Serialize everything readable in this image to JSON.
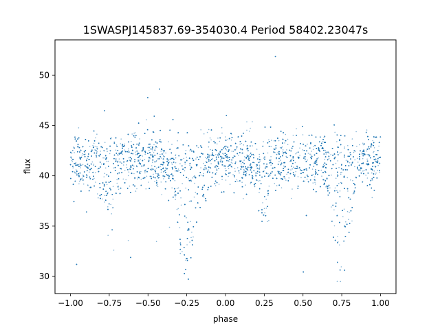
{
  "chart_data": {
    "type": "scatter",
    "title": "1SWASPJ145837.69-354030.4 Period 58402.23047s",
    "xlabel": "phase",
    "ylabel": "flux",
    "xlim": [
      -1.1,
      1.1
    ],
    "ylim": [
      28.3,
      53.5
    ],
    "xticks": [
      -1.0,
      -0.75,
      -0.5,
      -0.25,
      0.0,
      0.25,
      0.5,
      0.75,
      1.0
    ],
    "xtick_labels": [
      "−1.00",
      "−0.75",
      "−0.50",
      "−0.25",
      "0.00",
      "0.25",
      "0.50",
      "0.75",
      "1.00"
    ],
    "yticks": [
      30,
      35,
      40,
      45,
      50
    ],
    "ytick_labels": [
      "30",
      "35",
      "40",
      "45",
      "50"
    ],
    "grid": false,
    "marker_color": "#1f77b4",
    "series": [
      {
        "phase_range": [
          -1.0,
          1.0
        ],
        "baseline_flux": 41.5,
        "baseline_spread": 1.4,
        "flux_min": 29.5,
        "flux_max": 52.7,
        "primary_eclipse": {
          "phase": [
            -0.25,
            0.75
          ],
          "min_flux": 30.5,
          "half_width": 0.13
        },
        "secondary_eclipse": {
          "phase": [
            -0.75,
            0.25
          ],
          "min_flux": 36.5,
          "half_width": 0.1
        }
      }
    ]
  }
}
